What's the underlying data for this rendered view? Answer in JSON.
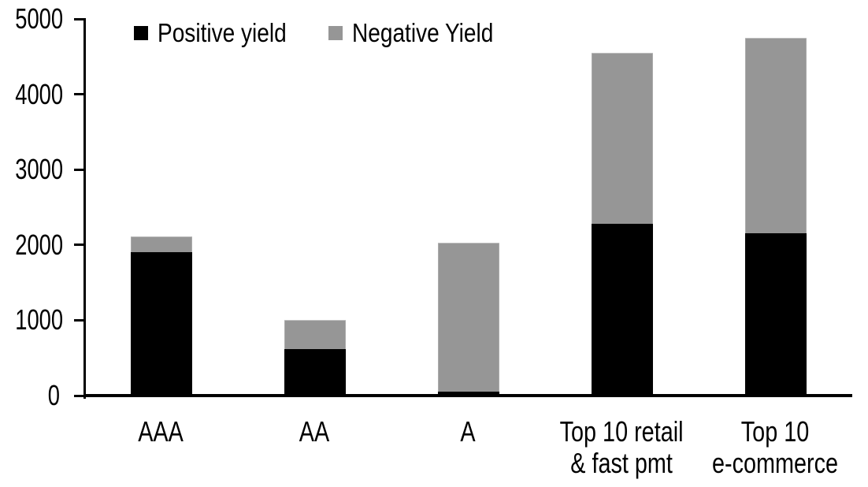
{
  "chart_data": {
    "type": "bar",
    "stacked": true,
    "title": "",
    "xlabel": "",
    "ylabel": "",
    "categories": [
      "AAA",
      "AA",
      "A",
      "Top 10 retail\n& fast pmt",
      "Top 10\ne-commerce"
    ],
    "series": [
      {
        "name": "Positive yield",
        "color": "#000000",
        "values": [
          1900,
          620,
          50,
          2280,
          2150
        ]
      },
      {
        "name": "Negative Yield",
        "color": "#969696",
        "values": [
          210,
          380,
          1980,
          2270,
          2600
        ]
      }
    ],
    "totals": [
      2110,
      1000,
      2030,
      4550,
      4750
    ],
    "ylim": [
      0,
      5000
    ],
    "yticks": [
      0,
      1000,
      2000,
      3000,
      4000,
      5000
    ],
    "grid": false,
    "legend_position": "top",
    "axis_color": "#000000",
    "background": "#ffffff"
  }
}
